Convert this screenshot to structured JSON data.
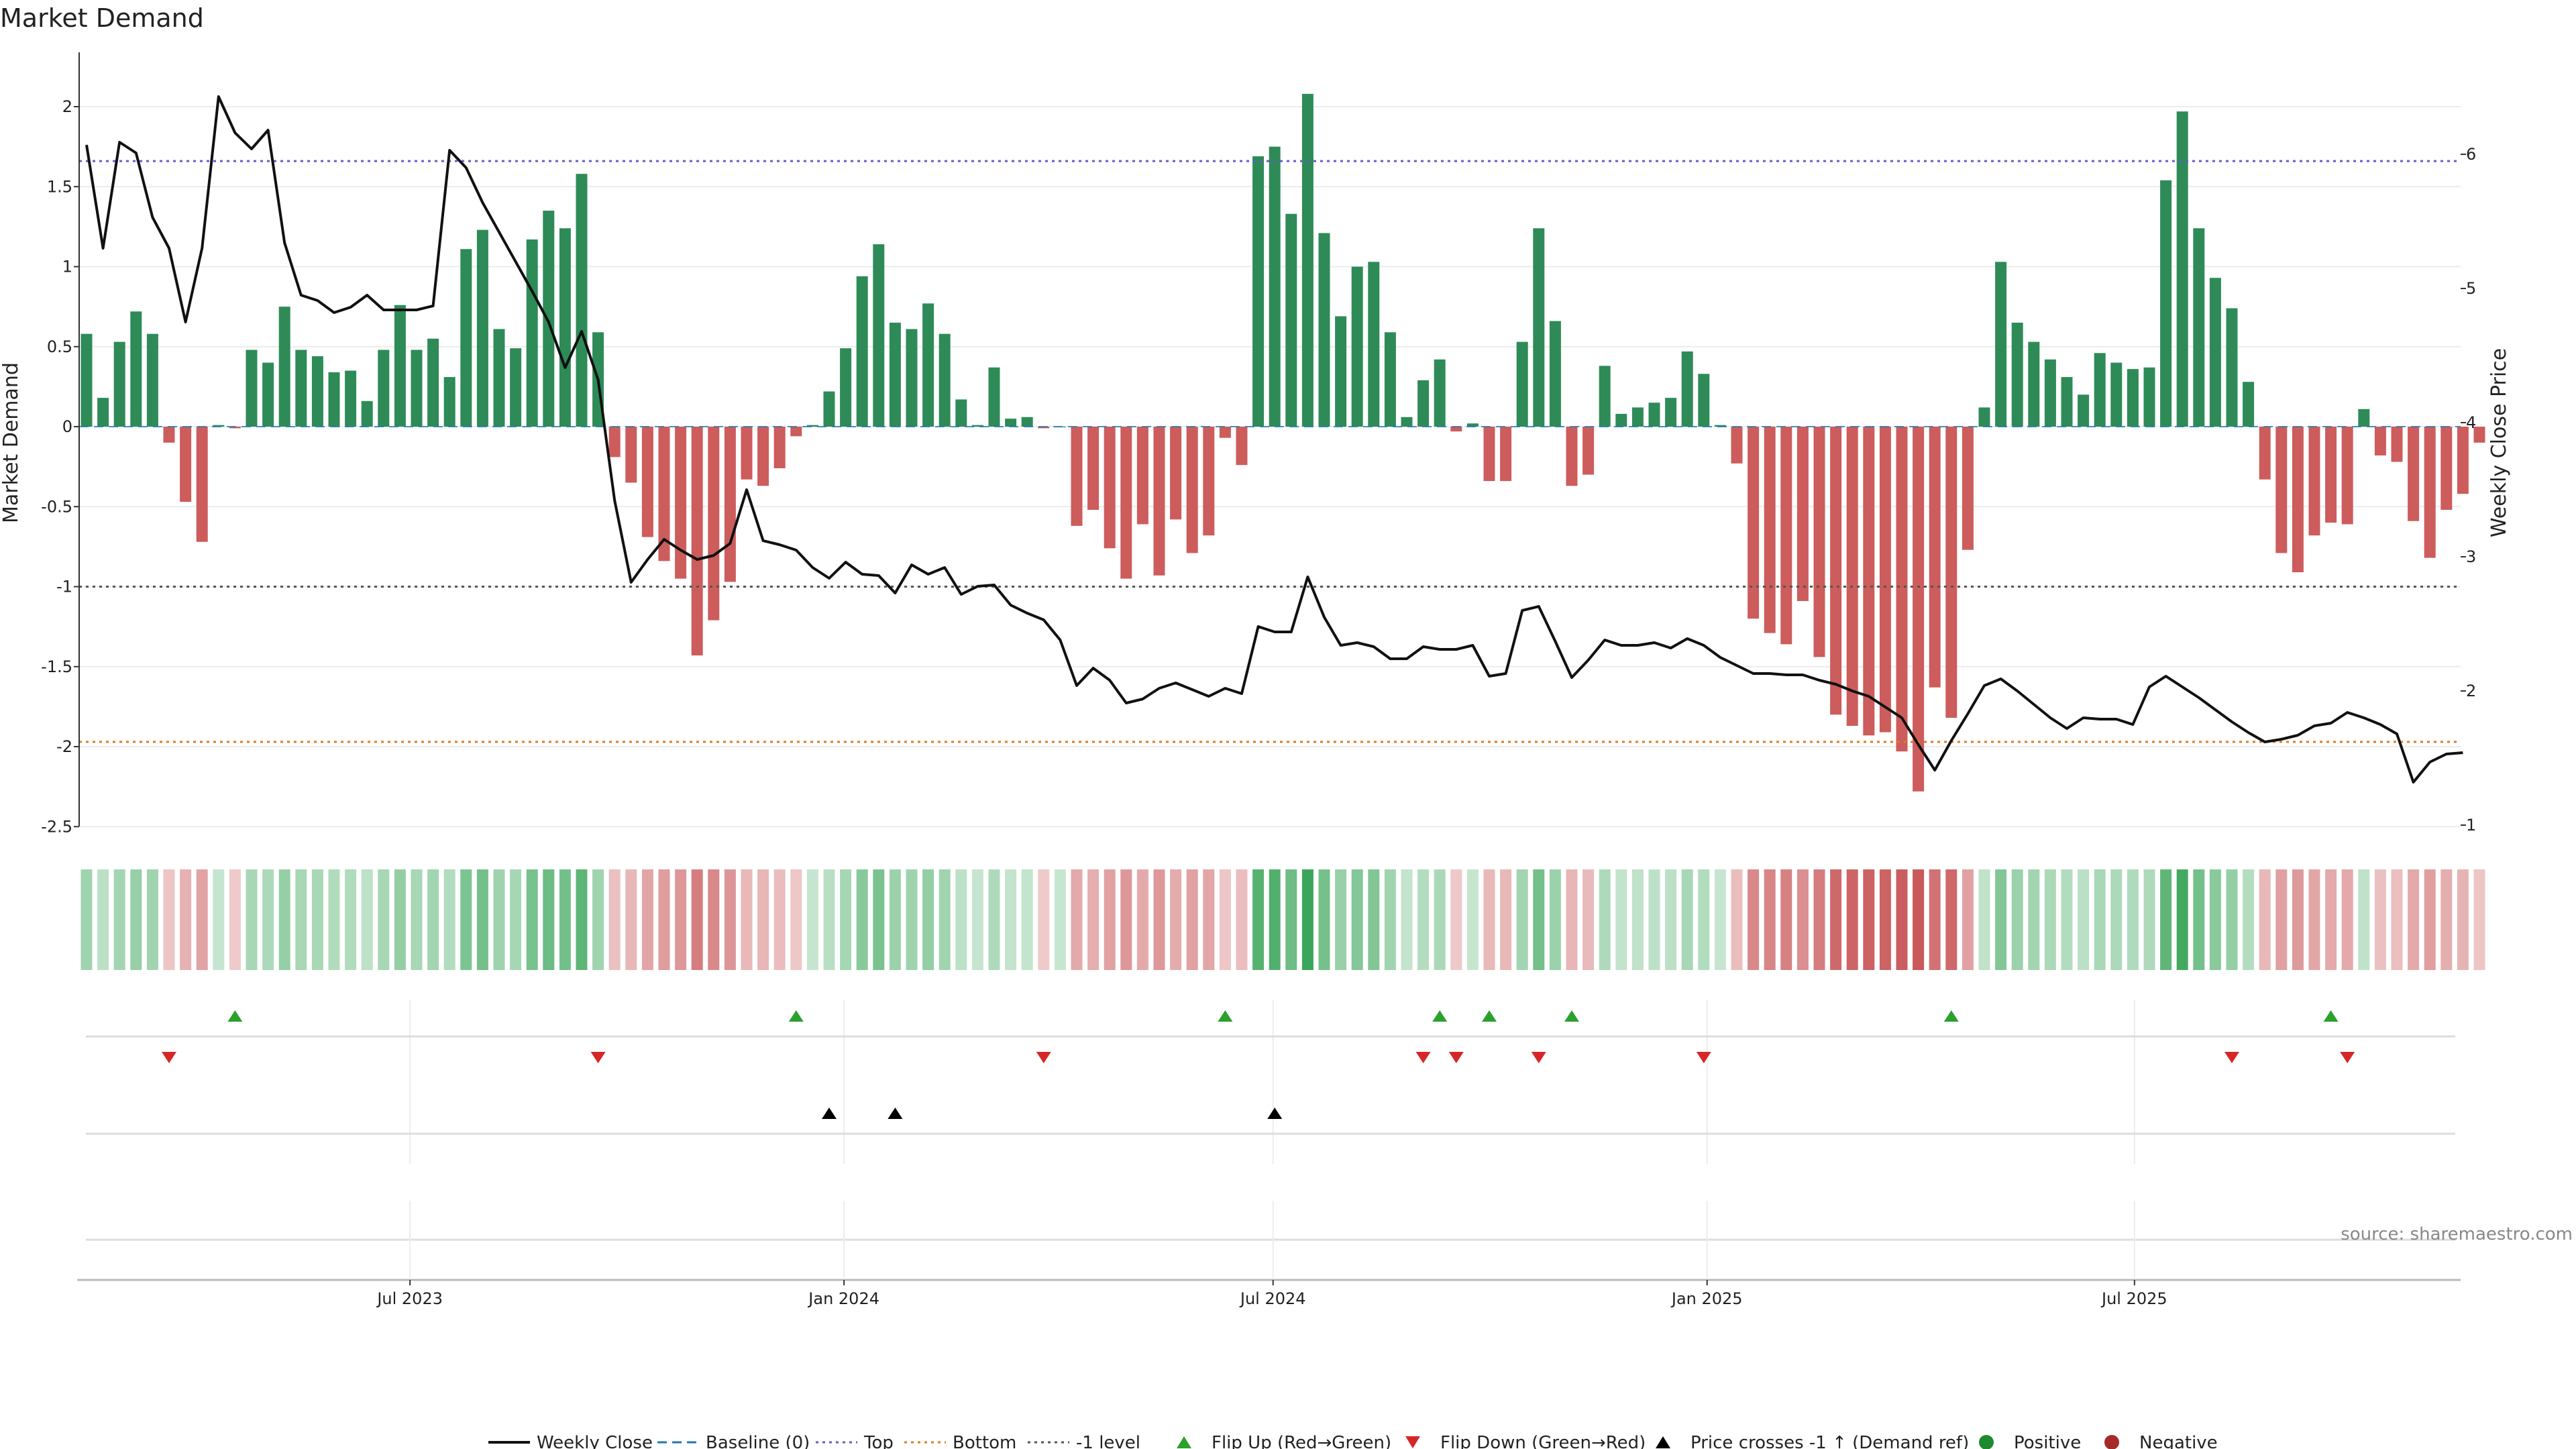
{
  "chart_data": {
    "type": "bar",
    "title": "Market Demand",
    "ylabel": "Market Demand",
    "y2label": "Weekly Close Price",
    "ylim": [
      -2.5,
      2.3
    ],
    "y2lim": [
      1,
      6.5
    ],
    "yticks": [
      "2",
      "1.5",
      "1",
      "0.5",
      "0",
      "-0.5",
      "-1",
      "-1.5",
      "-2",
      "-2.5"
    ],
    "ytick_values": [
      2,
      1.5,
      1,
      0.5,
      0,
      -0.5,
      -1,
      -1.5,
      -2,
      -2.5
    ],
    "y2ticks": [
      "6",
      "5",
      "4",
      "3",
      "2",
      "1"
    ],
    "y2tick_values": [
      6,
      5,
      4,
      3,
      2,
      1
    ],
    "xticks": [
      "Jul 2023",
      "Jan 2024",
      "Jul 2024",
      "Jan 2025",
      "Jul 2025"
    ],
    "xtick_index": [
      19.6,
      45.9,
      71.9,
      98.2,
      124.1
    ],
    "reference_lines": {
      "top": 1.66,
      "bottom": -1.97,
      "minus_one": -1.0,
      "baseline": 0
    },
    "series": [
      {
        "name": "Market Demand",
        "values": [
          0.58,
          0.18,
          0.53,
          0.72,
          0.58,
          -0.1,
          -0.47,
          -0.72,
          0.01,
          -0.01,
          0.48,
          0.4,
          0.75,
          0.48,
          0.44,
          0.34,
          0.35,
          0.16,
          0.48,
          0.76,
          0.48,
          0.55,
          0.31,
          1.11,
          1.23,
          0.61,
          0.49,
          1.17,
          1.35,
          1.24,
          1.58,
          0.59,
          -0.19,
          -0.35,
          -0.69,
          -0.84,
          -0.95,
          -1.43,
          -1.21,
          -0.97,
          -0.33,
          -0.37,
          -0.26,
          -0.06,
          0.01,
          0.22,
          0.49,
          0.94,
          1.14,
          0.65,
          0.61,
          0.77,
          0.58,
          0.17,
          0.01,
          0.37,
          0.05,
          0.06,
          -0.01,
          0.0,
          -0.62,
          -0.52,
          -0.76,
          -0.95,
          -0.61,
          -0.93,
          -0.58,
          -0.79,
          -0.68,
          -0.07,
          -0.24,
          1.69,
          1.75,
          1.33,
          2.08,
          1.21,
          0.69,
          1.0,
          1.03,
          0.59,
          0.06,
          0.29,
          0.42,
          -0.03,
          0.02,
          -0.34,
          -0.34,
          0.53,
          1.24,
          0.66,
          -0.37,
          -0.3,
          0.38,
          0.08,
          0.12,
          0.15,
          0.18,
          0.47,
          0.33,
          0.01,
          -0.23,
          -1.2,
          -1.29,
          -1.36,
          -1.09,
          -1.44,
          -1.8,
          -1.87,
          -1.93,
          -1.91,
          -2.03,
          -2.28,
          -1.63,
          -1.82,
          -0.77,
          0.12,
          1.03,
          0.65,
          0.53,
          0.42,
          0.31,
          0.2,
          0.46,
          0.4,
          0.36,
          0.37,
          1.54,
          1.97,
          1.24,
          0.93,
          0.74,
          0.28,
          -0.33,
          -0.79,
          -0.91,
          -0.68,
          -0.6,
          -0.61,
          0.11,
          -0.18,
          -0.22,
          -0.59,
          -0.82,
          -0.52,
          -0.42,
          -0.1
        ]
      },
      {
        "name": "Weekly Close",
        "axis": "right",
        "values": [
          6.07,
          5.3,
          6.09,
          6.01,
          5.53,
          5.3,
          4.75,
          5.3,
          6.43,
          6.16,
          6.04,
          6.18,
          5.34,
          4.95,
          4.91,
          4.82,
          4.86,
          4.95,
          4.84,
          4.84,
          4.84,
          4.87,
          6.03,
          5.9,
          5.64,
          5.42,
          5.2,
          4.98,
          4.75,
          4.41,
          4.68,
          4.32,
          3.42,
          2.81,
          2.98,
          3.13,
          3.05,
          2.98,
          3.01,
          3.1,
          3.5,
          3.12,
          3.09,
          3.05,
          2.92,
          2.84,
          2.96,
          2.87,
          2.86,
          2.73,
          2.94,
          2.87,
          2.92,
          2.72,
          2.78,
          2.79,
          2.64,
          2.58,
          2.53,
          2.38,
          2.04,
          2.17,
          2.08,
          1.91,
          1.94,
          2.02,
          2.06,
          2.01,
          1.96,
          2.02,
          1.98,
          2.48,
          2.44,
          2.44,
          2.85,
          2.55,
          2.34,
          2.36,
          2.33,
          2.24,
          2.24,
          2.33,
          2.31,
          2.31,
          2.34,
          2.11,
          2.13,
          2.6,
          2.63,
          2.37,
          2.1,
          2.23,
          2.38,
          2.34,
          2.34,
          2.36,
          2.32,
          2.39,
          2.34,
          2.25,
          2.19,
          2.13,
          2.13,
          2.12,
          2.12,
          2.08,
          2.05,
          2.0,
          1.96,
          1.88,
          1.8,
          1.6,
          1.41,
          1.63,
          1.83,
          2.04,
          2.09,
          2.0,
          1.9,
          1.8,
          1.72,
          1.8,
          1.79,
          1.79,
          1.75,
          2.03,
          2.11,
          2.03,
          1.95,
          1.86,
          1.77,
          1.69,
          1.62,
          1.64,
          1.67,
          1.74,
          1.76,
          1.84,
          1.8,
          1.75,
          1.68,
          1.32,
          1.47,
          1.53,
          1.54
        ]
      }
    ],
    "flip_up_index": [
      9,
      43,
      69,
      82,
      85,
      90,
      113,
      136
    ],
    "flip_down_index": [
      5,
      31,
      58,
      81,
      83,
      88,
      98,
      130,
      137
    ],
    "price_cross_up_index": [
      45,
      49,
      72
    ],
    "legend": [
      "Weekly Close",
      "Baseline (0)",
      "Top",
      "Bottom",
      "-1 level",
      "Flip Up (Red→Green)",
      "Flip Down (Green→Red)",
      "Price crosses -1 ↑ (Demand ref)",
      "Positive",
      "Negative"
    ],
    "legend_position": "bottom-center",
    "source": "source: sharemaestro.com",
    "colors": {
      "positive": "#2e8b57",
      "negative": "#cd5c5c",
      "price": "#111111",
      "top": "#6a5acd",
      "bottom": "#e07b20",
      "minus_one": "#555555",
      "baseline": "#1f77b4",
      "flip_up": "#2ca02c",
      "flip_down": "#d62728",
      "cross": "#000000",
      "legend_positive": "#1e8a2e",
      "legend_negative": "#a52a2a"
    }
  }
}
